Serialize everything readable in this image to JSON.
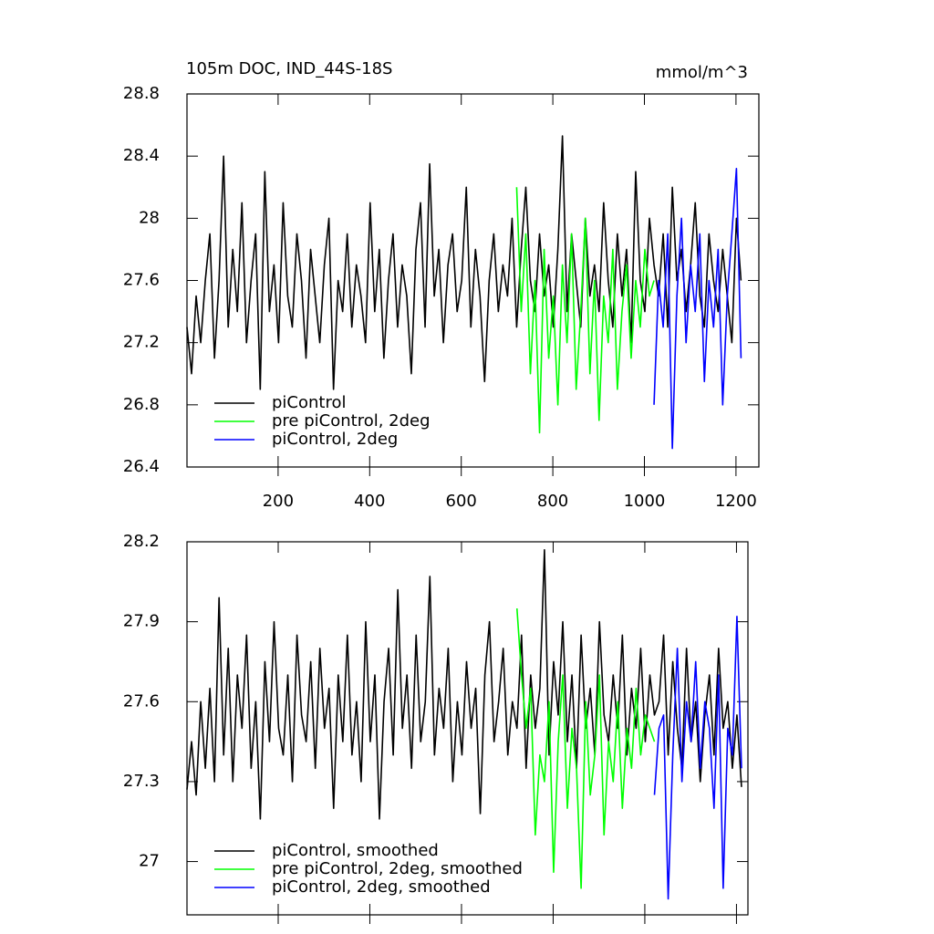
{
  "chart_data": [
    {
      "type": "line",
      "title": "105m DOC, IND_44S-18S",
      "y_units": "mmol/m^3",
      "xlim": [
        1,
        1250
      ],
      "xticks": [
        200,
        400,
        600,
        800,
        1000,
        1200
      ],
      "show_xtick_labels": true,
      "ylim": [
        26.4,
        28.8
      ],
      "yticks": [
        26.4,
        26.8,
        27.2,
        27.6,
        28.0,
        28.4,
        28.8
      ],
      "legend": "lower left",
      "series": [
        {
          "name": "piControl",
          "color": "#000000",
          "x": [
            1,
            11,
            21,
            31,
            41,
            51,
            61,
            71,
            81,
            91,
            101,
            111,
            121,
            131,
            141,
            151,
            161,
            171,
            181,
            191,
            201,
            211,
            221,
            231,
            241,
            251,
            261,
            271,
            281,
            291,
            301,
            311,
            321,
            331,
            341,
            351,
            361,
            371,
            381,
            391,
            401,
            411,
            421,
            431,
            441,
            451,
            461,
            471,
            481,
            491,
            501,
            511,
            521,
            531,
            541,
            551,
            561,
            571,
            581,
            591,
            601,
            611,
            621,
            631,
            641,
            651,
            661,
            671,
            681,
            691,
            701,
            711,
            721,
            731,
            741,
            751,
            761,
            771,
            781,
            791,
            801,
            811,
            821,
            831,
            841,
            851,
            861,
            871,
            881,
            891,
            901,
            911,
            921,
            931,
            941,
            951,
            961,
            971,
            981,
            991,
            1001,
            1011,
            1021,
            1031,
            1041,
            1051,
            1061,
            1071,
            1081,
            1091,
            1101,
            1111,
            1121,
            1131,
            1141,
            1151,
            1161,
            1171,
            1181,
            1191,
            1201,
            1211
          ],
          "values": [
            27.3,
            27.0,
            27.5,
            27.2,
            27.6,
            27.9,
            27.1,
            27.6,
            28.4,
            27.3,
            27.8,
            27.4,
            28.1,
            27.2,
            27.6,
            27.9,
            26.9,
            28.3,
            27.4,
            27.7,
            27.2,
            28.1,
            27.5,
            27.3,
            27.9,
            27.6,
            27.1,
            27.8,
            27.5,
            27.2,
            27.7,
            28.0,
            26.9,
            27.6,
            27.4,
            27.9,
            27.3,
            27.7,
            27.5,
            27.2,
            28.1,
            27.4,
            27.8,
            27.1,
            27.6,
            27.9,
            27.3,
            27.7,
            27.5,
            27.0,
            27.8,
            28.1,
            27.3,
            28.35,
            27.5,
            27.8,
            27.2,
            27.7,
            27.9,
            27.4,
            27.6,
            28.2,
            27.3,
            27.8,
            27.5,
            26.95,
            27.6,
            27.9,
            27.4,
            27.7,
            27.5,
            28.0,
            27.3,
            27.8,
            28.2,
            27.6,
            27.4,
            27.9,
            27.5,
            27.7,
            27.3,
            27.8,
            28.53,
            27.4,
            27.9,
            27.6,
            27.3,
            28.0,
            27.5,
            27.7,
            27.4,
            28.1,
            27.6,
            27.3,
            27.9,
            27.5,
            27.8,
            27.2,
            28.3,
            27.6,
            27.4,
            28.0,
            27.7,
            27.5,
            27.9,
            27.3,
            28.2,
            27.6,
            27.8,
            27.4,
            27.7,
            28.1,
            27.5,
            27.3,
            27.9,
            27.6,
            27.4,
            27.8,
            27.5,
            27.2,
            28.0,
            27.6
          ]
        },
        {
          "name": "pre piControl, 2deg",
          "color": "#00ff00",
          "x": [
            721,
            731,
            741,
            751,
            761,
            771,
            781,
            791,
            801,
            811,
            821,
            831,
            841,
            851,
            861,
            871,
            881,
            891,
            901,
            911,
            921,
            931,
            941,
            951,
            961,
            971,
            981,
            991,
            1001,
            1011,
            1021
          ],
          "values": [
            28.2,
            27.4,
            27.9,
            27.0,
            27.6,
            26.62,
            27.8,
            27.1,
            27.5,
            26.8,
            27.7,
            27.2,
            27.9,
            26.9,
            27.4,
            28.0,
            27.0,
            27.6,
            26.7,
            27.5,
            27.2,
            27.8,
            26.9,
            27.4,
            27.7,
            27.1,
            27.6,
            27.3,
            27.8,
            27.5,
            27.6
          ]
        },
        {
          "name": "piControl, 2deg",
          "color": "#0000ff",
          "x": [
            1021,
            1031,
            1041,
            1051,
            1061,
            1071,
            1081,
            1091,
            1101,
            1111,
            1121,
            1131,
            1141,
            1151,
            1161,
            1171,
            1181,
            1191,
            1201,
            1211
          ],
          "values": [
            26.8,
            27.6,
            27.3,
            27.9,
            26.52,
            27.5,
            28.0,
            27.2,
            27.7,
            27.4,
            27.9,
            26.95,
            27.6,
            27.3,
            27.8,
            26.8,
            27.5,
            27.9,
            28.32,
            27.1
          ]
        }
      ]
    },
    {
      "type": "line",
      "xlim": [
        1,
        1225
      ],
      "xticks": [
        200,
        400,
        600,
        800,
        1000,
        1200
      ],
      "show_xtick_labels": false,
      "ylim": [
        26.8,
        28.2
      ],
      "yticks": [
        27.0,
        27.3,
        27.6,
        27.9,
        28.2
      ],
      "legend": "lower left",
      "series": [
        {
          "name": "piControl, smoothed",
          "color": "#000000",
          "x": [
            1,
            11,
            21,
            31,
            41,
            51,
            61,
            71,
            81,
            91,
            101,
            111,
            121,
            131,
            141,
            151,
            161,
            171,
            181,
            191,
            201,
            211,
            221,
            231,
            241,
            251,
            261,
            271,
            281,
            291,
            301,
            311,
            321,
            331,
            341,
            351,
            361,
            371,
            381,
            391,
            401,
            411,
            421,
            431,
            441,
            451,
            461,
            471,
            481,
            491,
            501,
            511,
            521,
            531,
            541,
            551,
            561,
            571,
            581,
            591,
            601,
            611,
            621,
            631,
            641,
            651,
            661,
            671,
            681,
            691,
            701,
            711,
            721,
            731,
            741,
            751,
            761,
            771,
            781,
            791,
            801,
            811,
            821,
            831,
            841,
            851,
            861,
            871,
            881,
            891,
            901,
            911,
            921,
            931,
            941,
            951,
            961,
            971,
            981,
            991,
            1001,
            1011,
            1021,
            1031,
            1041,
            1051,
            1061,
            1071,
            1081,
            1091,
            1101,
            1111,
            1121,
            1131,
            1141,
            1151,
            1161,
            1171,
            1181,
            1191,
            1201,
            1211
          ],
          "values": [
            27.27,
            27.45,
            27.25,
            27.6,
            27.35,
            27.65,
            27.3,
            27.99,
            27.4,
            27.8,
            27.3,
            27.7,
            27.5,
            27.85,
            27.35,
            27.6,
            27.16,
            27.75,
            27.45,
            27.9,
            27.5,
            27.4,
            27.7,
            27.3,
            27.85,
            27.55,
            27.45,
            27.75,
            27.35,
            27.8,
            27.5,
            27.65,
            27.2,
            27.7,
            27.45,
            27.85,
            27.4,
            27.6,
            27.3,
            27.9,
            27.45,
            27.7,
            27.16,
            27.6,
            27.8,
            27.4,
            28.02,
            27.5,
            27.7,
            27.35,
            27.85,
            27.45,
            27.6,
            28.07,
            27.4,
            27.65,
            27.5,
            27.8,
            27.3,
            27.6,
            27.4,
            27.75,
            27.5,
            27.65,
            27.18,
            27.7,
            27.9,
            27.45,
            27.6,
            27.8,
            27.4,
            27.6,
            27.5,
            27.85,
            27.35,
            27.7,
            27.5,
            27.65,
            28.17,
            27.4,
            27.75,
            27.55,
            27.9,
            27.45,
            27.7,
            27.35,
            27.85,
            27.5,
            27.65,
            27.4,
            27.9,
            27.55,
            27.45,
            27.7,
            27.5,
            27.85,
            27.4,
            27.65,
            27.5,
            27.8,
            27.45,
            27.7,
            27.55,
            27.6,
            27.85,
            27.4,
            27.75,
            27.5,
            27.35,
            27.8,
            27.45,
            27.6,
            27.3,
            27.55,
            27.7,
            27.4,
            27.8,
            27.5,
            27.6,
            27.35,
            27.55,
            27.28
          ]
        },
        {
          "name": "pre piControl, 2deg, smoothed",
          "color": "#00ff00",
          "x": [
            721,
            731,
            741,
            751,
            761,
            771,
            781,
            791,
            801,
            811,
            821,
            831,
            841,
            851,
            861,
            871,
            881,
            891,
            901,
            911,
            921,
            931,
            941,
            951,
            961,
            971,
            981,
            991,
            1001,
            1011,
            1021
          ],
          "values": [
            27.95,
            27.7,
            27.5,
            27.65,
            27.1,
            27.4,
            27.3,
            27.6,
            26.96,
            27.45,
            27.7,
            27.2,
            27.5,
            27.35,
            26.9,
            27.6,
            27.25,
            27.4,
            27.7,
            27.1,
            27.45,
            27.3,
            27.6,
            27.2,
            27.5,
            27.35,
            27.65,
            27.4,
            27.55,
            27.5,
            27.45
          ]
        },
        {
          "name": "piControl, 2deg, smoothed",
          "color": "#0000ff",
          "x": [
            1021,
            1031,
            1041,
            1051,
            1061,
            1071,
            1081,
            1091,
            1101,
            1111,
            1121,
            1131,
            1141,
            1151,
            1161,
            1171,
            1181,
            1191,
            1201,
            1211
          ],
          "values": [
            27.25,
            27.5,
            27.55,
            26.86,
            27.4,
            27.8,
            27.3,
            27.6,
            27.45,
            27.75,
            27.35,
            27.6,
            27.5,
            27.2,
            27.7,
            26.9,
            27.5,
            27.4,
            27.92,
            27.35
          ]
        }
      ]
    }
  ]
}
